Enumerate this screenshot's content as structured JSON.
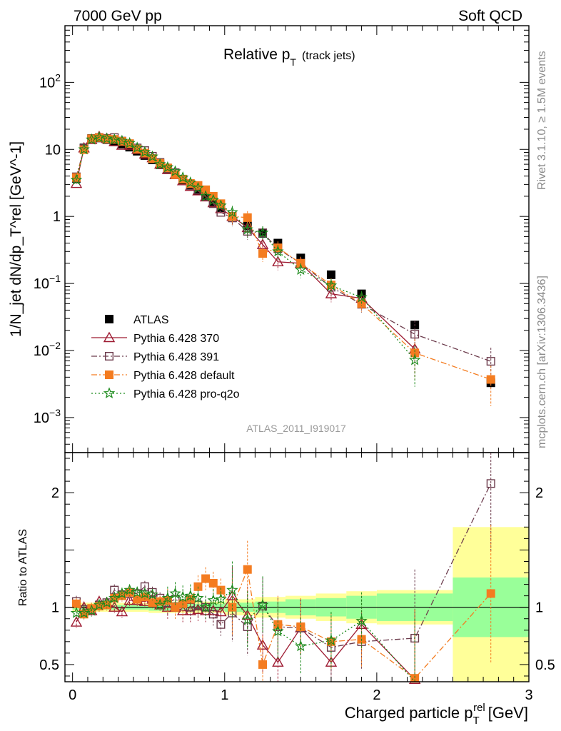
{
  "header": {
    "left": "7000 GeV pp",
    "right": "Soft QCD"
  },
  "side_label_top": "Rivet 3.1.10, ≥ 1.5M events",
  "side_label_bottom": "mcplots.cern.ch [arXiv:1306.3436]",
  "chart_data": [
    {
      "type": "scatter",
      "panel": "main",
      "title_main": "Relative p",
      "title_sub": "T",
      "title_suffix": "(track jets)",
      "watermark": "ATLAS_2011_I919017",
      "ylabel": "1/N_jet dN/dp_T^rel [GeV^-1]",
      "yscale": "log",
      "ylim": [
        0.0003,
        700
      ],
      "xlim": [
        -0.05,
        3.0
      ],
      "ytick_labels": [
        {
          "value": 0.001,
          "base": "10",
          "exp": "−3"
        },
        {
          "value": 0.01,
          "base": "10",
          "exp": "−2"
        },
        {
          "value": 0.1,
          "base": "10",
          "exp": "−1"
        },
        {
          "value": 1,
          "base": "1",
          "exp": ""
        },
        {
          "value": 10,
          "base": "10",
          "exp": ""
        },
        {
          "value": 100,
          "base": "10",
          "exp": "2"
        }
      ],
      "legend_position": "bottom-left",
      "series": [
        {
          "name": "ATLAS",
          "color": "#000000",
          "marker": "filled-square",
          "line": "none",
          "x": [
            0.025,
            0.075,
            0.125,
            0.175,
            0.225,
            0.275,
            0.325,
            0.375,
            0.425,
            0.475,
            0.525,
            0.575,
            0.625,
            0.675,
            0.725,
            0.775,
            0.825,
            0.875,
            0.925,
            0.975,
            1.05,
            1.15,
            1.25,
            1.35,
            1.5,
            1.7,
            1.9,
            2.25,
            2.75
          ],
          "y": [
            3.7,
            10.5,
            14.5,
            14.8,
            14.0,
            13.0,
            12.0,
            10.8,
            9.4,
            8.1,
            7.0,
            5.9,
            5.0,
            4.2,
            3.5,
            2.9,
            2.45,
            2.0,
            1.65,
            1.35,
            1.0,
            0.72,
            0.56,
            0.4,
            0.24,
            0.135,
            0.07,
            0.024,
            0.0033
          ]
        },
        {
          "name": "Pythia 6.428 370",
          "color": "#9e1b32",
          "marker": "open-triangle",
          "line": "solid",
          "x": [
            0.025,
            0.075,
            0.125,
            0.175,
            0.225,
            0.275,
            0.325,
            0.375,
            0.425,
            0.475,
            0.525,
            0.575,
            0.625,
            0.675,
            0.725,
            0.775,
            0.825,
            0.875,
            0.925,
            0.975,
            1.05,
            1.15,
            1.25,
            1.35,
            1.5,
            1.7,
            1.9,
            2.25
          ],
          "y": [
            3.1,
            10.5,
            14.0,
            15.5,
            14.5,
            13.0,
            11.5,
            11.5,
            10.0,
            8.5,
            7.5,
            6.0,
            5.0,
            4.2,
            3.4,
            2.8,
            2.4,
            1.95,
            1.6,
            1.3,
            1.0,
            0.68,
            0.38,
            0.21,
            0.2,
            0.07,
            0.06,
            0.0105
          ]
        },
        {
          "name": "Pythia 6.428 391",
          "color": "#6b3a4b",
          "marker": "open-square",
          "line": "dashdot",
          "x": [
            0.025,
            0.075,
            0.125,
            0.175,
            0.225,
            0.275,
            0.325,
            0.375,
            0.425,
            0.475,
            0.525,
            0.575,
            0.625,
            0.675,
            0.725,
            0.775,
            0.825,
            0.875,
            0.925,
            0.975,
            1.05,
            1.15,
            1.25,
            1.35,
            1.5,
            1.7,
            1.9,
            2.25,
            2.75
          ],
          "y": [
            3.9,
            10.3,
            14.2,
            15.1,
            14.6,
            15.0,
            13.3,
            12.1,
            10.5,
            9.6,
            7.9,
            6.4,
            5.2,
            4.5,
            3.6,
            2.9,
            2.5,
            2.0,
            1.55,
            1.15,
            0.95,
            0.6,
            0.57,
            0.33,
            0.2,
            0.088,
            0.049,
            0.0175,
            0.0069
          ]
        },
        {
          "name": "Pythia 6.428 default",
          "color": "#f47c20",
          "marker": "filled-square",
          "line": "dashdot",
          "x": [
            0.025,
            0.075,
            0.125,
            0.175,
            0.225,
            0.275,
            0.325,
            0.375,
            0.425,
            0.475,
            0.525,
            0.575,
            0.625,
            0.675,
            0.725,
            0.775,
            0.825,
            0.875,
            0.925,
            0.975,
            1.05,
            1.15,
            1.25,
            1.35,
            1.5,
            1.7,
            1.9,
            2.25,
            2.75
          ],
          "y": [
            3.8,
            9.9,
            14.4,
            15.0,
            14.3,
            14.1,
            13.2,
            12.2,
            10.1,
            8.8,
            7.3,
            6.2,
            5.3,
            4.2,
            3.6,
            3.1,
            2.9,
            2.5,
            2.0,
            1.55,
            1.0,
            0.96,
            0.28,
            0.34,
            0.2,
            0.095,
            0.05,
            0.0092,
            0.0037
          ]
        },
        {
          "name": "Pythia 6.428 pro-q2o",
          "color": "#1b8a1b",
          "marker": "open-star",
          "line": "dotted",
          "x": [
            0.025,
            0.075,
            0.125,
            0.175,
            0.225,
            0.275,
            0.325,
            0.375,
            0.425,
            0.475,
            0.525,
            0.575,
            0.625,
            0.675,
            0.725,
            0.775,
            0.825,
            0.875,
            0.925,
            0.975,
            1.05,
            1.15,
            1.25,
            1.35,
            1.5,
            1.7,
            1.9,
            2.25
          ],
          "y": [
            3.5,
            10.0,
            14.0,
            15.1,
            14.5,
            14.0,
            13.4,
            12.4,
            10.6,
            9.1,
            7.8,
            6.0,
            5.4,
            4.7,
            3.8,
            3.2,
            2.65,
            2.0,
            1.75,
            1.45,
            1.15,
            0.64,
            0.57,
            0.3,
            0.16,
            0.093,
            0.062,
            0.0072
          ]
        }
      ]
    },
    {
      "type": "scatter",
      "panel": "ratio",
      "ylabel": "Ratio to ATLAS",
      "xlabel_main": "Charged particle p",
      "xlabel_sub": "T",
      "xlabel_sup": "rel",
      "xlabel_unit": "[GeV]",
      "xlim": [
        -0.05,
        3.0
      ],
      "ylim": [
        0.35,
        2.35
      ],
      "xticks": [
        0,
        1,
        2,
        3
      ],
      "xtick_labels": [
        "0",
        "1",
        "2",
        "3"
      ],
      "yticks": [
        0.5,
        1,
        2
      ],
      "ytick_labels": [
        "0.5",
        "1",
        "2"
      ],
      "bands": [
        {
          "x0": 0.0,
          "x1": 0.5,
          "inner": 0.02,
          "outer": 0.04
        },
        {
          "x0": 0.5,
          "x1": 1.0,
          "inner": 0.03,
          "outer": 0.05
        },
        {
          "x0": 1.0,
          "x1": 1.2,
          "inner": 0.04,
          "outer": 0.07
        },
        {
          "x0": 1.2,
          "x1": 1.4,
          "inner": 0.05,
          "outer": 0.09
        },
        {
          "x0": 1.4,
          "x1": 1.6,
          "inner": 0.07,
          "outer": 0.1
        },
        {
          "x0": 1.6,
          "x1": 1.8,
          "inner": 0.08,
          "outer": 0.12
        },
        {
          "x0": 1.8,
          "x1": 2.0,
          "inner": 0.1,
          "outer": 0.14
        },
        {
          "x0": 2.0,
          "x1": 2.5,
          "inner": 0.12,
          "outer": 0.15
        },
        {
          "x0": 2.5,
          "x1": 3.0,
          "inner": 0.26,
          "outer": 0.7
        }
      ],
      "band_colors": {
        "inner": "#99ff99",
        "outer": "#ffff99"
      },
      "series": [
        {
          "name": "Pythia 6.428 370",
          "color": "#9e1b32",
          "marker": "open-triangle",
          "line": "solid",
          "x": [
            0.025,
            0.075,
            0.125,
            0.175,
            0.225,
            0.275,
            0.325,
            0.375,
            0.425,
            0.475,
            0.525,
            0.575,
            0.625,
            0.675,
            0.725,
            0.775,
            0.825,
            0.875,
            0.925,
            0.975,
            1.05,
            1.15,
            1.25,
            1.35,
            1.5,
            1.7,
            1.9,
            2.25
          ],
          "y": [
            0.87,
            1.0,
            0.97,
            1.05,
            1.04,
            1.0,
            0.96,
            1.06,
            1.06,
            1.05,
            1.07,
            1.02,
            1.0,
            1.0,
            0.97,
            0.97,
            0.98,
            0.97,
            0.97,
            0.96,
            1.1,
            0.93,
            0.67,
            0.52,
            0.82,
            0.52,
            0.85,
            0.37
          ]
        },
        {
          "name": "Pythia 6.428 391",
          "color": "#6b3a4b",
          "marker": "open-square",
          "line": "dashdot",
          "x": [
            0.025,
            0.075,
            0.125,
            0.175,
            0.225,
            0.275,
            0.325,
            0.375,
            0.425,
            0.475,
            0.525,
            0.575,
            0.625,
            0.675,
            0.725,
            0.775,
            0.825,
            0.875,
            0.925,
            0.975,
            1.05,
            1.15,
            1.25,
            1.35,
            1.5,
            1.7,
            1.9,
            2.25,
            2.75
          ],
          "y": [
            1.05,
            0.98,
            0.98,
            1.02,
            1.04,
            1.15,
            1.11,
            1.12,
            1.12,
            1.18,
            1.13,
            1.08,
            1.04,
            1.07,
            1.03,
            1.0,
            1.02,
            1.0,
            0.94,
            0.85,
            0.95,
            0.83,
            1.01,
            0.83,
            0.82,
            0.65,
            0.7,
            0.73,
            2.08
          ]
        },
        {
          "name": "Pythia 6.428 default",
          "color": "#f47c20",
          "marker": "filled-square",
          "line": "dashdot",
          "x": [
            0.025,
            0.075,
            0.125,
            0.175,
            0.225,
            0.275,
            0.325,
            0.375,
            0.425,
            0.475,
            0.525,
            0.575,
            0.625,
            0.675,
            0.725,
            0.775,
            0.825,
            0.875,
            0.925,
            0.975,
            1.05,
            1.15,
            1.25,
            1.35,
            1.5,
            1.7,
            1.9,
            2.25,
            2.75
          ],
          "y": [
            1.03,
            0.94,
            0.99,
            1.01,
            1.02,
            1.08,
            1.1,
            1.13,
            1.07,
            1.09,
            1.04,
            1.05,
            1.06,
            1.0,
            1.03,
            1.07,
            1.18,
            1.25,
            1.21,
            1.15,
            1.0,
            1.33,
            0.5,
            0.85,
            0.83,
            0.7,
            0.72,
            0.38,
            1.12
          ]
        },
        {
          "name": "Pythia 6.428 pro-q2o",
          "color": "#1b8a1b",
          "marker": "open-star",
          "line": "dotted",
          "x": [
            0.025,
            0.075,
            0.125,
            0.175,
            0.225,
            0.275,
            0.325,
            0.375,
            0.425,
            0.475,
            0.525,
            0.575,
            0.625,
            0.675,
            0.725,
            0.775,
            0.825,
            0.875,
            0.925,
            0.975,
            1.05,
            1.15,
            1.25,
            1.35,
            1.5,
            1.7,
            1.9,
            2.25
          ],
          "y": [
            0.95,
            0.95,
            0.97,
            1.02,
            1.04,
            1.08,
            1.12,
            1.15,
            1.13,
            1.12,
            1.11,
            1.02,
            1.08,
            1.12,
            1.09,
            1.1,
            1.08,
            1.0,
            1.06,
            1.07,
            1.15,
            0.89,
            1.02,
            0.79,
            0.66,
            0.71,
            0.88,
            0.3
          ]
        }
      ]
    }
  ]
}
